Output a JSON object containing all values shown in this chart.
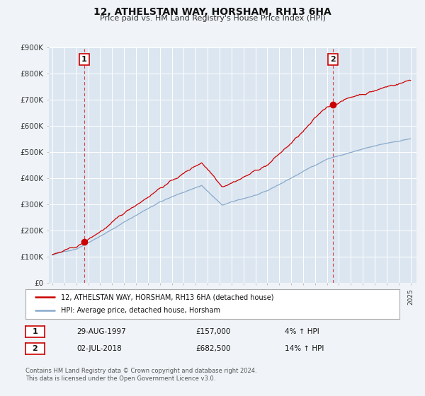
{
  "title": "12, ATHELSTAN WAY, HORSHAM, RH13 6HA",
  "subtitle": "Price paid vs. HM Land Registry's House Price Index (HPI)",
  "background_color": "#f0f4f8",
  "plot_bg_color": "#dce6f0",
  "grid_color": "#ffffff",
  "red_line_color": "#cc0000",
  "blue_line_color": "#88aacc",
  "sale1_date_num": 1997.66,
  "sale1_price": 157000,
  "sale2_date_num": 2018.5,
  "sale2_price": 682500,
  "vline_color": "#cc0000",
  "annotation_border_color": "#cc0000",
  "legend_line1": "12, ATHELSTAN WAY, HORSHAM, RH13 6HA (detached house)",
  "legend_line2": "HPI: Average price, detached house, Horsham",
  "table_row1": [
    "1",
    "29-AUG-1997",
    "£157,000",
    "4% ↑ HPI"
  ],
  "table_row2": [
    "2",
    "02-JUL-2018",
    "£682,500",
    "14% ↑ HPI"
  ],
  "footer1": "Contains HM Land Registry data © Crown copyright and database right 2024.",
  "footer2": "This data is licensed under the Open Government Licence v3.0.",
  "ylim_max": 900000,
  "xmin": 1994.7,
  "xmax": 2025.5,
  "yticks": [
    0,
    100000,
    200000,
    300000,
    400000,
    500000,
    600000,
    700000,
    800000,
    900000
  ],
  "ylabels": [
    "£0",
    "£100K",
    "£200K",
    "£300K",
    "£400K",
    "£500K",
    "£600K",
    "£700K",
    "£800K",
    "£900K"
  ]
}
